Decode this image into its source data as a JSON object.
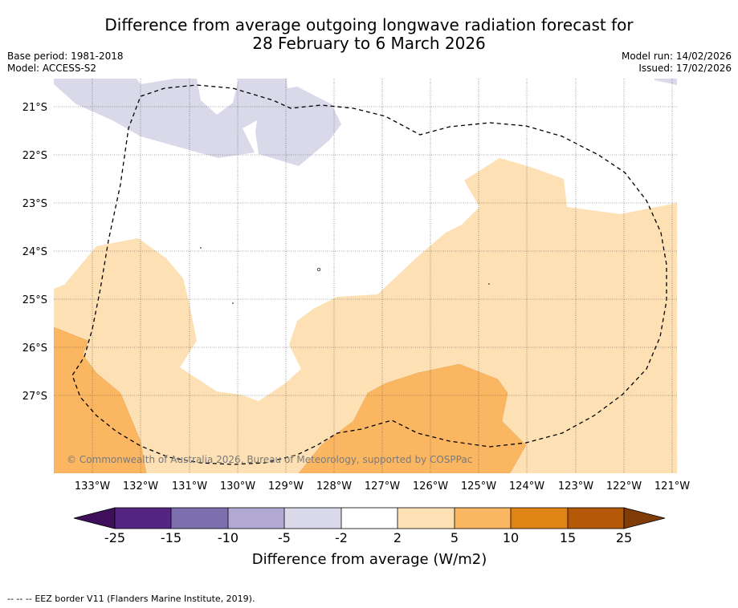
{
  "title": {
    "line1": "Difference from average outgoing longwave radiation forecast for",
    "line2": "28 February to 6 March 2026"
  },
  "meta": {
    "base_period": "Base period: 1981-2018",
    "model": "Model: ACCESS-S2",
    "model_run": "Model run: 14/02/2026",
    "issued": "Issued: 17/02/2026"
  },
  "map": {
    "lat_labels": [
      "21°S",
      "22°S",
      "23°S",
      "24°S",
      "25°S",
      "26°S",
      "27°S"
    ],
    "lon_labels": [
      "133°W",
      "132°W",
      "131°W",
      "130°W",
      "129°W",
      "128°W",
      "127°W",
      "126°W",
      "125°W",
      "124°W",
      "123°W",
      "122°W",
      "121°W"
    ],
    "copyright": "© Commonwealth of Australia 2026, Bureau of Meteorology, supported by COSPPac",
    "colors": {
      "light_purple": "#d9d9ea",
      "light_orange": "#fde0b4",
      "orange": "#fbb661",
      "white": "#ffffff"
    }
  },
  "colorbar": {
    "label": "Difference from average (W/m2)",
    "ticks": [
      "-25",
      "-15",
      "-10",
      "-5",
      "-2",
      "2",
      "5",
      "10",
      "15",
      "25"
    ],
    "colors": [
      "#3f0f5c",
      "#552584",
      "#7d6ead",
      "#b1a9d3",
      "#d9d9ea",
      "#ffffff",
      "#fde0b4",
      "#fbb661",
      "#e18416",
      "#b35907",
      "#7f3b08"
    ]
  },
  "legend": {
    "eez_symbol": "--  --  --",
    "eez_text": "EEZ border V11 (Flanders Marine Institute, 2019)."
  }
}
